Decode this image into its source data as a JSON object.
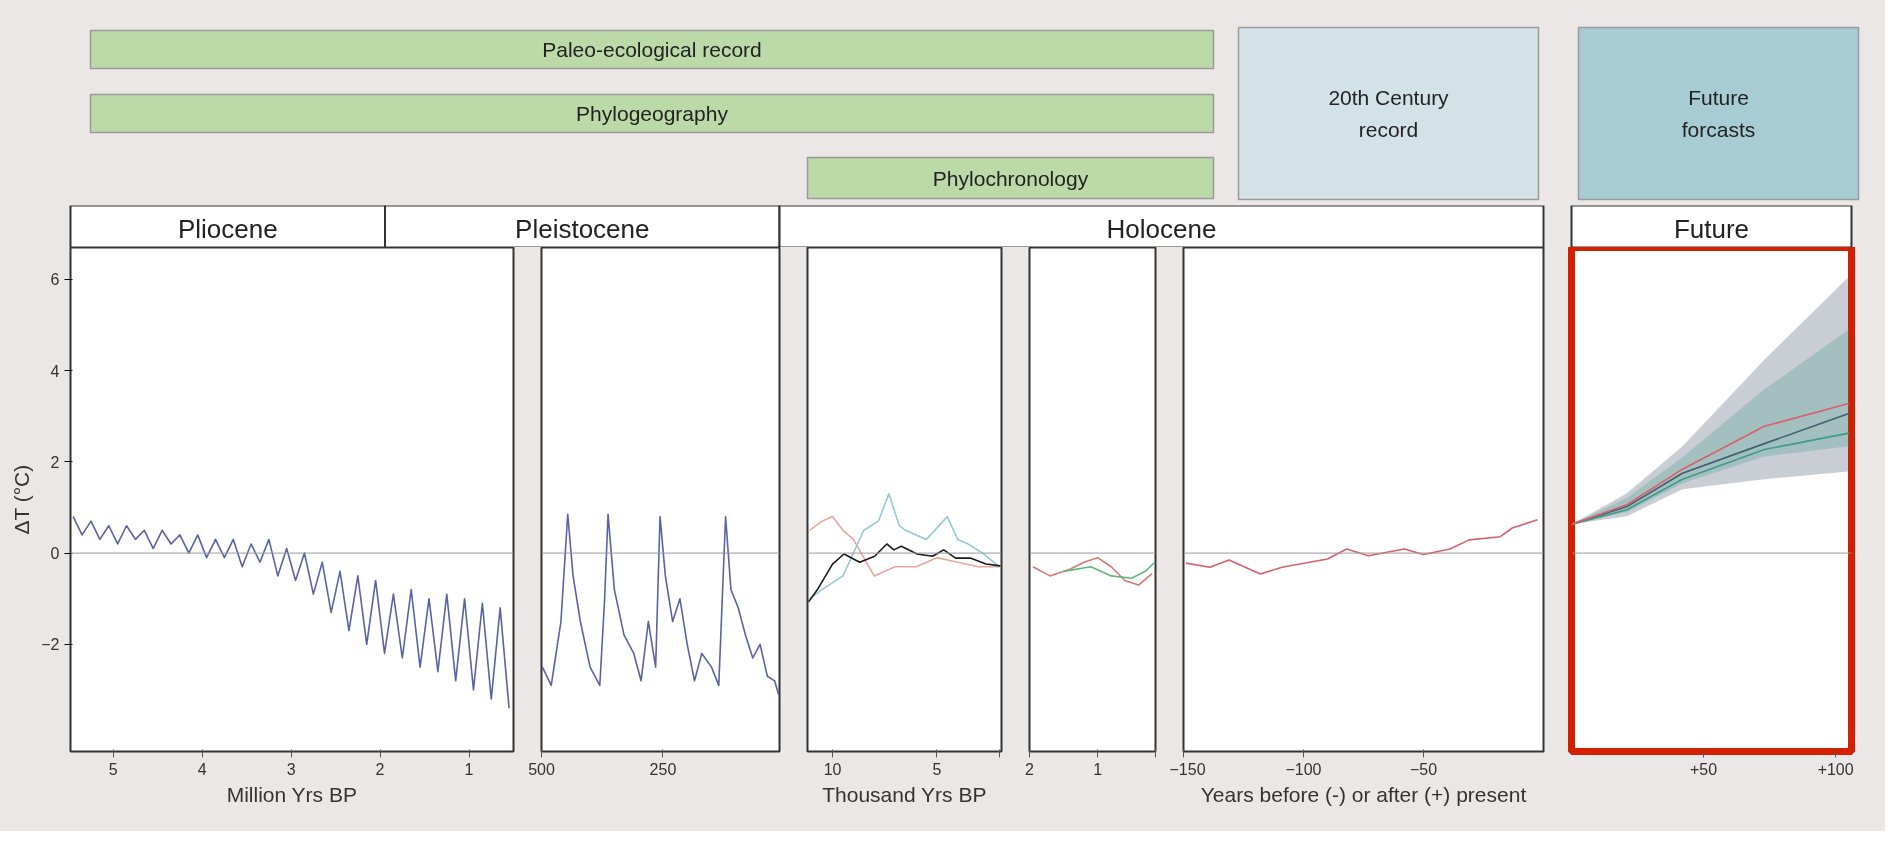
{
  "chart_data": [
    {
      "type": "other",
      "annotations": [
        "Paleo-ecological record",
        "Phylogeography",
        "Phylochronology",
        "20th Century record",
        "Future forcasts",
        "Pliocene",
        "Pleistocene",
        "Holocene",
        "Future"
      ]
    },
    {
      "type": "line",
      "xlabel": "Million Yrs BP",
      "ylabel": "ΔT (°C)",
      "xlim": [
        5.48,
        0.5
      ],
      "ylim": [
        -4.35,
        6.7
      ],
      "xticks": [
        5,
        4,
        3,
        2,
        1
      ],
      "yticks": [
        -2,
        0,
        2,
        4,
        6
      ],
      "ref_lines": [
        {
          "axis": "y",
          "value": 0,
          "color": "#9a9a9a"
        }
      ],
      "series": [
        {
          "color": "#5a62a6",
          "x": [
            5.45,
            5.35,
            5.25,
            5.15,
            5.05,
            4.95,
            4.85,
            4.75,
            4.65,
            4.55,
            4.45,
            4.35,
            4.25,
            4.15,
            4.05,
            3.95,
            3.85,
            3.75,
            3.65,
            3.55,
            3.45,
            3.35,
            3.25,
            3.15,
            3.05,
            2.95,
            2.85,
            2.75,
            2.65,
            2.55,
            2.45,
            2.35,
            2.25,
            2.15,
            2.05,
            1.95,
            1.85,
            1.75,
            1.65,
            1.55,
            1.45,
            1.35,
            1.25,
            1.15,
            1.05,
            0.95,
            0.85,
            0.75,
            0.65,
            0.55
          ],
          "values": [
            0.8,
            0.4,
            0.7,
            0.3,
            0.6,
            0.2,
            0.6,
            0.3,
            0.5,
            0.1,
            0.5,
            0.2,
            0.4,
            0.0,
            0.4,
            -0.1,
            0.3,
            -0.1,
            0.3,
            -0.3,
            0.2,
            -0.2,
            0.3,
            -0.5,
            0.1,
            -0.6,
            0.0,
            -0.9,
            -0.2,
            -1.3,
            -0.4,
            -1.7,
            -0.5,
            -2.0,
            -0.6,
            -2.2,
            -0.9,
            -2.3,
            -0.8,
            -2.5,
            -1.0,
            -2.6,
            -0.9,
            -2.8,
            -1.0,
            -3.0,
            -1.1,
            -3.2,
            -1.2,
            -3.4
          ]
        }
      ]
    },
    {
      "type": "line",
      "xlim": [
        500,
        10
      ],
      "ylim": [
        -4.35,
        6.7
      ],
      "xticks": [
        500,
        250
      ],
      "tick_labels": "x",
      "ref_lines": [
        {
          "axis": "y",
          "value": 0,
          "color": "#9a9a9a"
        }
      ],
      "series": [
        {
          "color": "#5a62a6",
          "x": [
            498,
            480,
            460,
            446,
            435,
            420,
            400,
            380,
            370,
            363,
            350,
            330,
            310,
            295,
            280,
            265,
            256,
            245,
            230,
            215,
            200,
            185,
            170,
            150,
            135,
            121,
            110,
            95,
            80,
            65,
            50,
            35,
            20,
            12
          ],
          "values": [
            -2.5,
            -2.9,
            -1.5,
            0.85,
            -0.5,
            -1.5,
            -2.5,
            -2.9,
            -1.0,
            0.85,
            -0.8,
            -1.8,
            -2.2,
            -2.8,
            -1.5,
            -2.5,
            0.8,
            -0.5,
            -1.5,
            -1.0,
            -2.0,
            -2.8,
            -2.2,
            -2.5,
            -2.9,
            0.8,
            -0.8,
            -1.2,
            -1.8,
            -2.3,
            -2.0,
            -2.7,
            -2.8,
            -3.1
          ]
        }
      ]
    },
    {
      "type": "line",
      "xlabel": "Thousand Yrs BP",
      "xlim": [
        11.2,
        1.9
      ],
      "ylim": [
        -4.35,
        6.7
      ],
      "xticks": [
        10,
        5,
        {
          "value": 2,
          "label": null
        }
      ],
      "tick_labels": "x",
      "ref_lines": [
        {
          "axis": "y",
          "value": 0,
          "color": "#9a9a9a"
        }
      ],
      "series": [
        {
          "color": "#eaa59c",
          "x": [
            11.1,
            10.5,
            10.0,
            9.5,
            9.0,
            8.5,
            8.0,
            7.0,
            6.0,
            5.0,
            4.0,
            3.0,
            2.0
          ],
          "values": [
            0.5,
            0.7,
            0.8,
            0.5,
            0.3,
            -0.1,
            -0.5,
            -0.3,
            -0.3,
            -0.1,
            -0.2,
            -0.3,
            -0.3
          ]
        },
        {
          "color": "#93c9d3",
          "x": [
            11.1,
            10.5,
            9.5,
            9.0,
            8.5,
            7.8,
            7.3,
            6.8,
            6.5,
            5.5,
            4.5,
            4.0,
            3.5,
            2.8,
            2.0
          ],
          "values": [
            -1.0,
            -0.8,
            -0.5,
            0.0,
            0.5,
            0.7,
            1.3,
            0.6,
            0.5,
            0.3,
            0.8,
            0.3,
            0.2,
            0.0,
            -0.3
          ]
        },
        {
          "color": "#1a1a1a",
          "x": [
            11.15,
            10.74,
            10.0,
            9.45,
            8.7,
            7.98,
            7.4,
            7.06,
            6.7,
            5.95,
            5.2,
            4.67,
            4.1,
            3.4,
            2.64,
            1.95
          ],
          "values": [
            -1.07,
            -0.81,
            -0.24,
            -0.02,
            -0.2,
            -0.07,
            0.2,
            0.07,
            0.15,
            -0.02,
            -0.07,
            0.07,
            -0.11,
            -0.11,
            -0.24,
            -0.28
          ]
        }
      ]
    },
    {
      "type": "line",
      "xlim": [
        2,
        0.15
      ],
      "ylim": [
        -4.35,
        6.7
      ],
      "xticks": [
        2,
        1,
        {
          "value": 0.15,
          "label": null
        }
      ],
      "tick_labels": "x",
      "ref_lines": [
        {
          "axis": "y",
          "value": 0,
          "color": "#9a9a9a"
        }
      ],
      "series": [
        {
          "color": "#d9776f",
          "x": [
            1.95,
            1.7,
            1.4,
            1.2,
            1.0,
            0.8,
            0.6,
            0.4,
            0.2
          ],
          "values": [
            -0.3,
            -0.5,
            -0.35,
            -0.2,
            -0.1,
            -0.3,
            -0.6,
            -0.7,
            -0.45
          ]
        },
        {
          "color": "#5fb87a",
          "x": [
            1.5,
            1.1,
            0.8,
            0.5,
            0.3,
            0.16
          ],
          "values": [
            -0.4,
            -0.3,
            -0.5,
            -0.55,
            -0.4,
            -0.2
          ]
        }
      ]
    },
    {
      "type": "line",
      "xlabel": "Years before (-) or after (+) present",
      "xlim": [
        -150,
        0
      ],
      "ylim": [
        -4.35,
        6.7
      ],
      "xticks": [
        -150,
        -100,
        -50
      ],
      "tick_labels": "x",
      "ref_lines": [
        {
          "axis": "y",
          "value": 0,
          "color": "#9a9a9a"
        }
      ],
      "series": [
        {
          "color": "#d9606a",
          "x": [
            -149,
            -139,
            -131,
            -118,
            -109,
            -90,
            -82,
            -73,
            -58,
            -50,
            -39,
            -31,
            -18,
            -13,
            -2.5
          ],
          "values": [
            -0.22,
            -0.31,
            -0.15,
            -0.46,
            -0.31,
            -0.13,
            0.09,
            -0.06,
            0.09,
            -0.03,
            0.09,
            0.29,
            0.36,
            0.55,
            0.73
          ]
        }
      ]
    },
    {
      "type": "line",
      "xlim": [
        0,
        106
      ],
      "ylim": [
        -4.35,
        6.7
      ],
      "xticks": [
        {
          "value": 50,
          "label": "+50"
        },
        {
          "value": 100,
          "label": "+100"
        }
      ],
      "tick_labels": "x",
      "ref_lines": [
        {
          "axis": "y",
          "value": 0,
          "color": "#9a9a9a"
        }
      ],
      "series": [
        {
          "color": "#3d4a66",
          "x": [
            0,
            21,
            42,
            73,
            105
          ],
          "values": [
            0.63,
            1.02,
            1.75,
            2.4,
            3.06
          ],
          "lower": [
            0.63,
            0.81,
            1.4,
            1.62,
            1.79
          ],
          "upper": [
            0.63,
            1.31,
            2.34,
            4.24,
            6.06
          ]
        },
        {
          "color": "#3f9a8a",
          "x": [
            0,
            21,
            42,
            73,
            105
          ],
          "values": [
            0.63,
            0.95,
            1.62,
            2.27,
            2.63
          ],
          "lower": [
            0.63,
            0.9,
            1.53,
            2.12,
            2.34
          ],
          "upper": [
            0.63,
            1.21,
            2.1,
            3.59,
            4.9
          ]
        },
        {
          "color": "#d9606a",
          "x": [
            0,
            21,
            42,
            73,
            105
          ],
          "values": [
            0.63,
            1.06,
            1.84,
            2.78,
            3.28
          ]
        }
      ]
    }
  ]
}
